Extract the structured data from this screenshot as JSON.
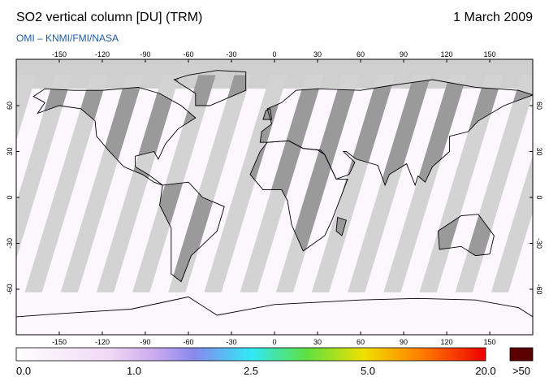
{
  "header": {
    "title": "SO2 vertical column [DU] (TRM)",
    "date": "1 March 2009",
    "source": "OMI  –  KNMI/FMI/NASA"
  },
  "map": {
    "lon_ticks": [
      -150,
      -120,
      -90,
      -60,
      -30,
      0,
      30,
      60,
      90,
      120,
      150
    ],
    "lat_ticks": [
      60,
      30,
      0,
      -30,
      -60
    ]
  },
  "colorbar": {
    "labels": [
      "0.0",
      "1.0",
      "2.5",
      "5.0",
      "20.0",
      ">50"
    ]
  }
}
